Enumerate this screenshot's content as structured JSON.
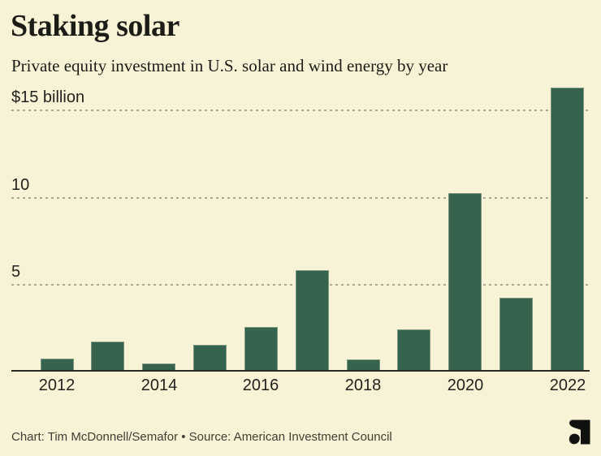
{
  "header": {
    "title": "Staking solar",
    "subtitle": "Private equity investment in U.S. solar and wind energy by year"
  },
  "chart_data": {
    "type": "bar",
    "title": "Staking solar",
    "subtitle": "Private equity investment in U.S. solar and wind energy by year",
    "unit": "billions of U.S. dollars",
    "categories": [
      "2012",
      "2013",
      "2014",
      "2015",
      "2016",
      "2017",
      "2018",
      "2019",
      "2020",
      "2021",
      "2022"
    ],
    "values": [
      0.7,
      1.7,
      0.4,
      1.5,
      2.5,
      5.8,
      0.65,
      2.4,
      10.2,
      4.2,
      16.3
    ],
    "y_ticks": [
      {
        "value": 15,
        "label": "$15 billion"
      },
      {
        "value": 10,
        "label": "10"
      },
      {
        "value": 5,
        "label": "5"
      }
    ],
    "x_tick_labels": [
      "2012",
      "2014",
      "2016",
      "2018",
      "2020",
      "2022"
    ],
    "ylim": [
      0,
      16.5
    ],
    "grid": "horizontal-dashed",
    "legend": "none",
    "bar_color": "#35634e"
  },
  "colors": {
    "background": "#f8f3d6",
    "bar": "#35634e",
    "text": "#1c1c17",
    "tick_text": "#22221d",
    "grid": "#aaa794",
    "axis": "#2a2a23",
    "footer_text": "#3e3e35",
    "logo": "#111110"
  },
  "footer": {
    "credit": "Chart: Tim McDonnell/Semafor • Source: American Investment Council",
    "logo": "semafor-logo"
  }
}
